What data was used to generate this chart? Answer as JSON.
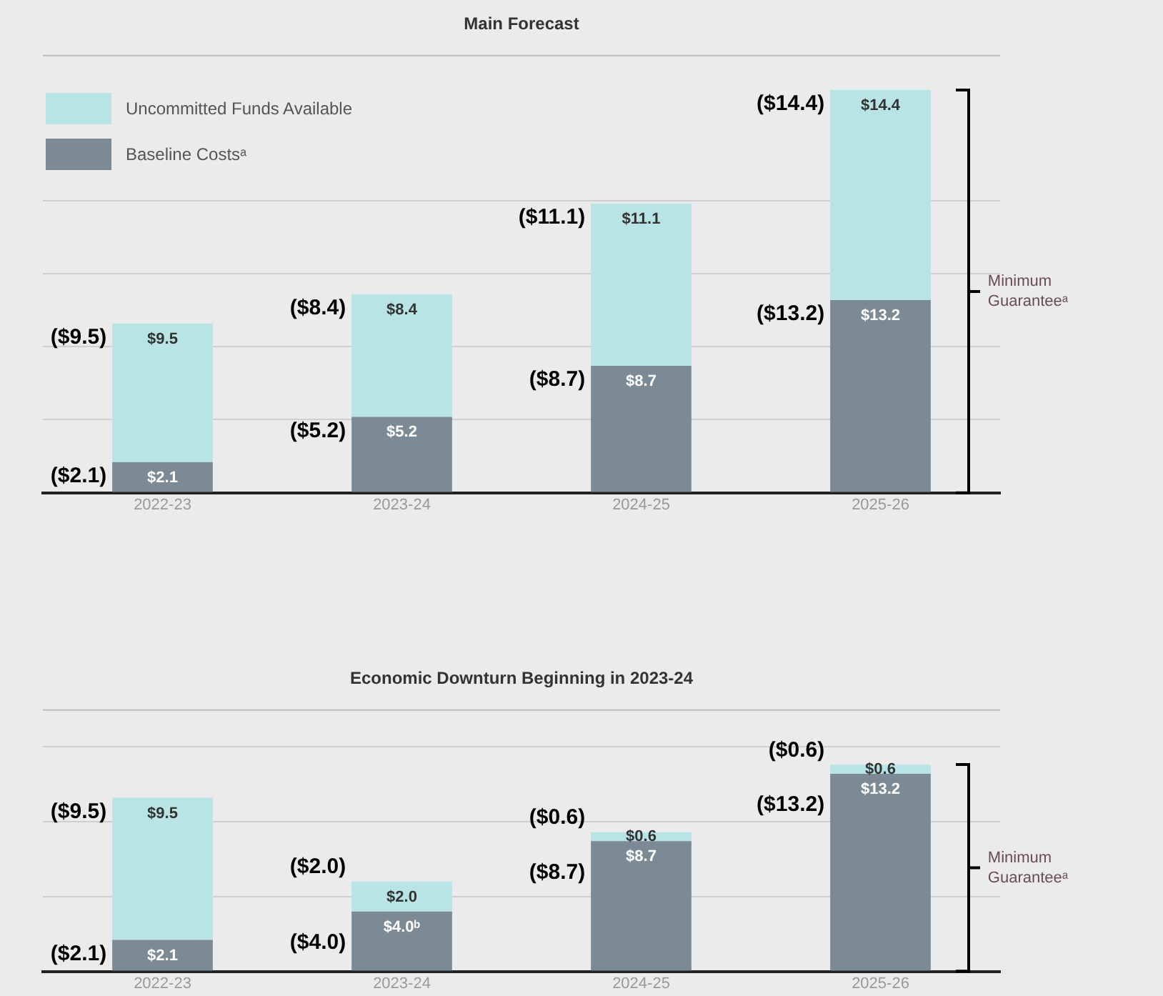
{
  "chart_data": [
    {
      "type": "bar",
      "title": "Main Forecast",
      "stacked": true,
      "grid": "y",
      "legend": "top left",
      "tick_labels": "x",
      "categories": [
        "2022-23",
        "2023-24",
        "2024-25",
        "2025-26"
      ],
      "ylim": [
        0,
        30
      ],
      "yticks": [
        {
          "value": 0,
          "label": null
        },
        {
          "value": 5,
          "label": null
        },
        {
          "value": 10,
          "label": null
        },
        {
          "value": 15,
          "label": null
        },
        {
          "value": 20,
          "label": null
        }
      ],
      "series": [
        {
          "name": "Baseline Costsᵃ",
          "color": "#7b8a94",
          "values": [
            2.1,
            5.2,
            8.7,
            13.2
          ],
          "value_labels": [
            "$2.1",
            "$5.2",
            "$8.7",
            "$13.2"
          ]
        },
        {
          "name": "Uncommitted Funds Available",
          "color": "#b8e4e6",
          "values": [
            9.5,
            8.4,
            11.1,
            14.4
          ],
          "value_labels": [
            "$9.5",
            "$8.4",
            "$11.1",
            "$14.4"
          ]
        }
      ],
      "annotations": [
        "Minimum Guaranteeᵃ",
        {
          "text": "($2.1)",
          "x": "2022-23",
          "y": 2.1
        },
        {
          "text": "($9.5)",
          "x": "2022-23",
          "y": 11.6
        },
        {
          "text": "($5.2)",
          "x": "2023-24",
          "y": 5.2
        },
        {
          "text": "($8.4)",
          "x": "2023-24",
          "y": 13.6
        },
        {
          "text": "($8.7)",
          "x": "2024-25",
          "y": 8.7
        },
        {
          "text": "($11.1)",
          "x": "2024-25",
          "y": 19.8
        },
        {
          "text": "($13.2)",
          "x": "2025-26",
          "y": 13.2
        },
        {
          "text": "($14.4)",
          "x": "2025-26",
          "y": 27.6
        }
      ]
    },
    {
      "type": "bar",
      "title": "Economic Downturn Beginning in 2023-24",
      "stacked": true,
      "grid": "y",
      "tick_labels": "x",
      "categories": [
        "2022-23",
        "2023-24",
        "2024-25",
        "2025-26"
      ],
      "ylim": [
        0,
        17.5
      ],
      "yticks": [
        {
          "value": 0,
          "label": null
        },
        {
          "value": 5,
          "label": null
        },
        {
          "value": 10,
          "label": null
        },
        {
          "value": 15,
          "label": null
        }
      ],
      "series": [
        {
          "color": "#7b8a94",
          "values": [
            2.1,
            4.0,
            8.7,
            13.2
          ],
          "value_labels": [
            "$2.1",
            "$4.0ᵇ",
            "$8.7",
            "$13.2"
          ]
        },
        {
          "color": "#b8e4e6",
          "values": [
            9.5,
            2.0,
            0.6,
            0.6
          ],
          "value_labels": [
            "$9.5",
            "$2.0",
            "$0.6",
            "$0.6"
          ]
        }
      ],
      "annotations": [
        "Minimum Guaranteeᵃ",
        {
          "text": "($2.1)",
          "x": "2022-23",
          "y": 2.1
        },
        {
          "text": "($9.5)",
          "x": "2022-23",
          "y": 11.6
        },
        {
          "text": "($4.0)",
          "x": "2023-24",
          "y": 4.0
        },
        {
          "text": "($2.0)",
          "x": "2023-24",
          "y": 6.0
        },
        {
          "text": "($8.7)",
          "x": "2024-25",
          "y": 8.7
        },
        {
          "text": "($0.6)",
          "x": "2024-25",
          "y": 9.3
        },
        {
          "text": "($13.2)",
          "x": "2025-26",
          "y": 13.2
        },
        {
          "text": "($0.6)",
          "x": "2025-26",
          "y": 13.8
        }
      ]
    }
  ]
}
